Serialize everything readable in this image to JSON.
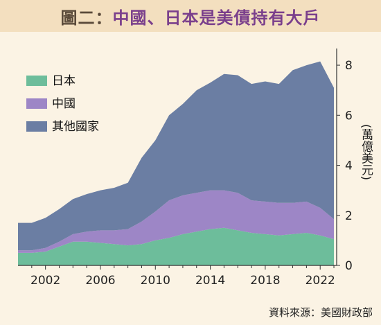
{
  "title": {
    "prefix": "圖二：",
    "text": "中國、日本是美債持有大戶"
  },
  "source": "資料來源：美國財政部",
  "colors": {
    "background": "#fbf3e4",
    "title_bar": "#f3dfbf",
    "title_accent": "#7a3f8c",
    "japan": "#6dbd9b",
    "china": "#9d86c6",
    "others": "#6b7ea3"
  },
  "chart_data": {
    "type": "area",
    "stacked": true,
    "title": "中國、日本是美債持有大戶",
    "xlabel": "",
    "ylabel": "(萬億美元)",
    "ylim": [
      0,
      8.5
    ],
    "yticks": [
      0,
      2,
      4,
      6,
      8
    ],
    "xticks": [
      2002,
      2006,
      2010,
      2014,
      2018,
      2022
    ],
    "legend_position": "top-left",
    "x": [
      2000,
      2001,
      2002,
      2003,
      2004,
      2005,
      2006,
      2007,
      2008,
      2009,
      2010,
      2011,
      2012,
      2013,
      2014,
      2015,
      2016,
      2017,
      2018,
      2019,
      2020,
      2021,
      2022,
      2023
    ],
    "series": [
      {
        "name": "日本",
        "color": "#6dbd9b",
        "values": [
          0.5,
          0.5,
          0.55,
          0.75,
          0.95,
          0.95,
          0.9,
          0.85,
          0.8,
          0.85,
          1.0,
          1.1,
          1.25,
          1.35,
          1.45,
          1.5,
          1.4,
          1.3,
          1.25,
          1.2,
          1.25,
          1.3,
          1.2,
          1.05
        ]
      },
      {
        "name": "中國",
        "color": "#9d86c6",
        "values": [
          0.1,
          0.1,
          0.15,
          0.2,
          0.3,
          0.4,
          0.5,
          0.55,
          0.65,
          0.9,
          1.15,
          1.5,
          1.55,
          1.55,
          1.55,
          1.5,
          1.5,
          1.3,
          1.3,
          1.3,
          1.25,
          1.25,
          1.1,
          0.8
        ]
      },
      {
        "name": "其他國家",
        "color": "#6b7ea3",
        "values": [
          1.1,
          1.1,
          1.2,
          1.3,
          1.4,
          1.5,
          1.6,
          1.7,
          1.85,
          2.55,
          2.85,
          3.4,
          3.65,
          4.1,
          4.3,
          4.65,
          4.7,
          4.65,
          4.8,
          4.75,
          5.3,
          5.45,
          5.85,
          5.25
        ]
      }
    ]
  }
}
